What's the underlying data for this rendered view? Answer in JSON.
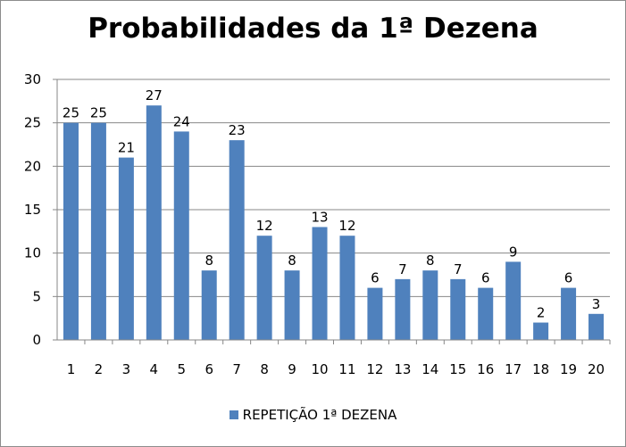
{
  "chart_data": {
    "type": "bar",
    "title": "Probabilidades da 1ª Dezena",
    "categories": [
      "1",
      "2",
      "3",
      "4",
      "5",
      "6",
      "7",
      "8",
      "9",
      "10",
      "11",
      "12",
      "13",
      "14",
      "15",
      "16",
      "17",
      "18",
      "19",
      "20"
    ],
    "series": [
      {
        "name": "REPETIÇÃO 1ª DEZENA",
        "values": [
          25,
          25,
          21,
          27,
          24,
          8,
          23,
          12,
          8,
          13,
          12,
          6,
          7,
          8,
          7,
          6,
          9,
          2,
          6,
          3
        ],
        "color": "#4f81bd"
      }
    ],
    "ylim": [
      0,
      30
    ],
    "yticks": [
      0,
      5,
      10,
      15,
      20,
      25,
      30
    ],
    "grid": true,
    "legend_position": "bottom",
    "data_labels": true
  }
}
